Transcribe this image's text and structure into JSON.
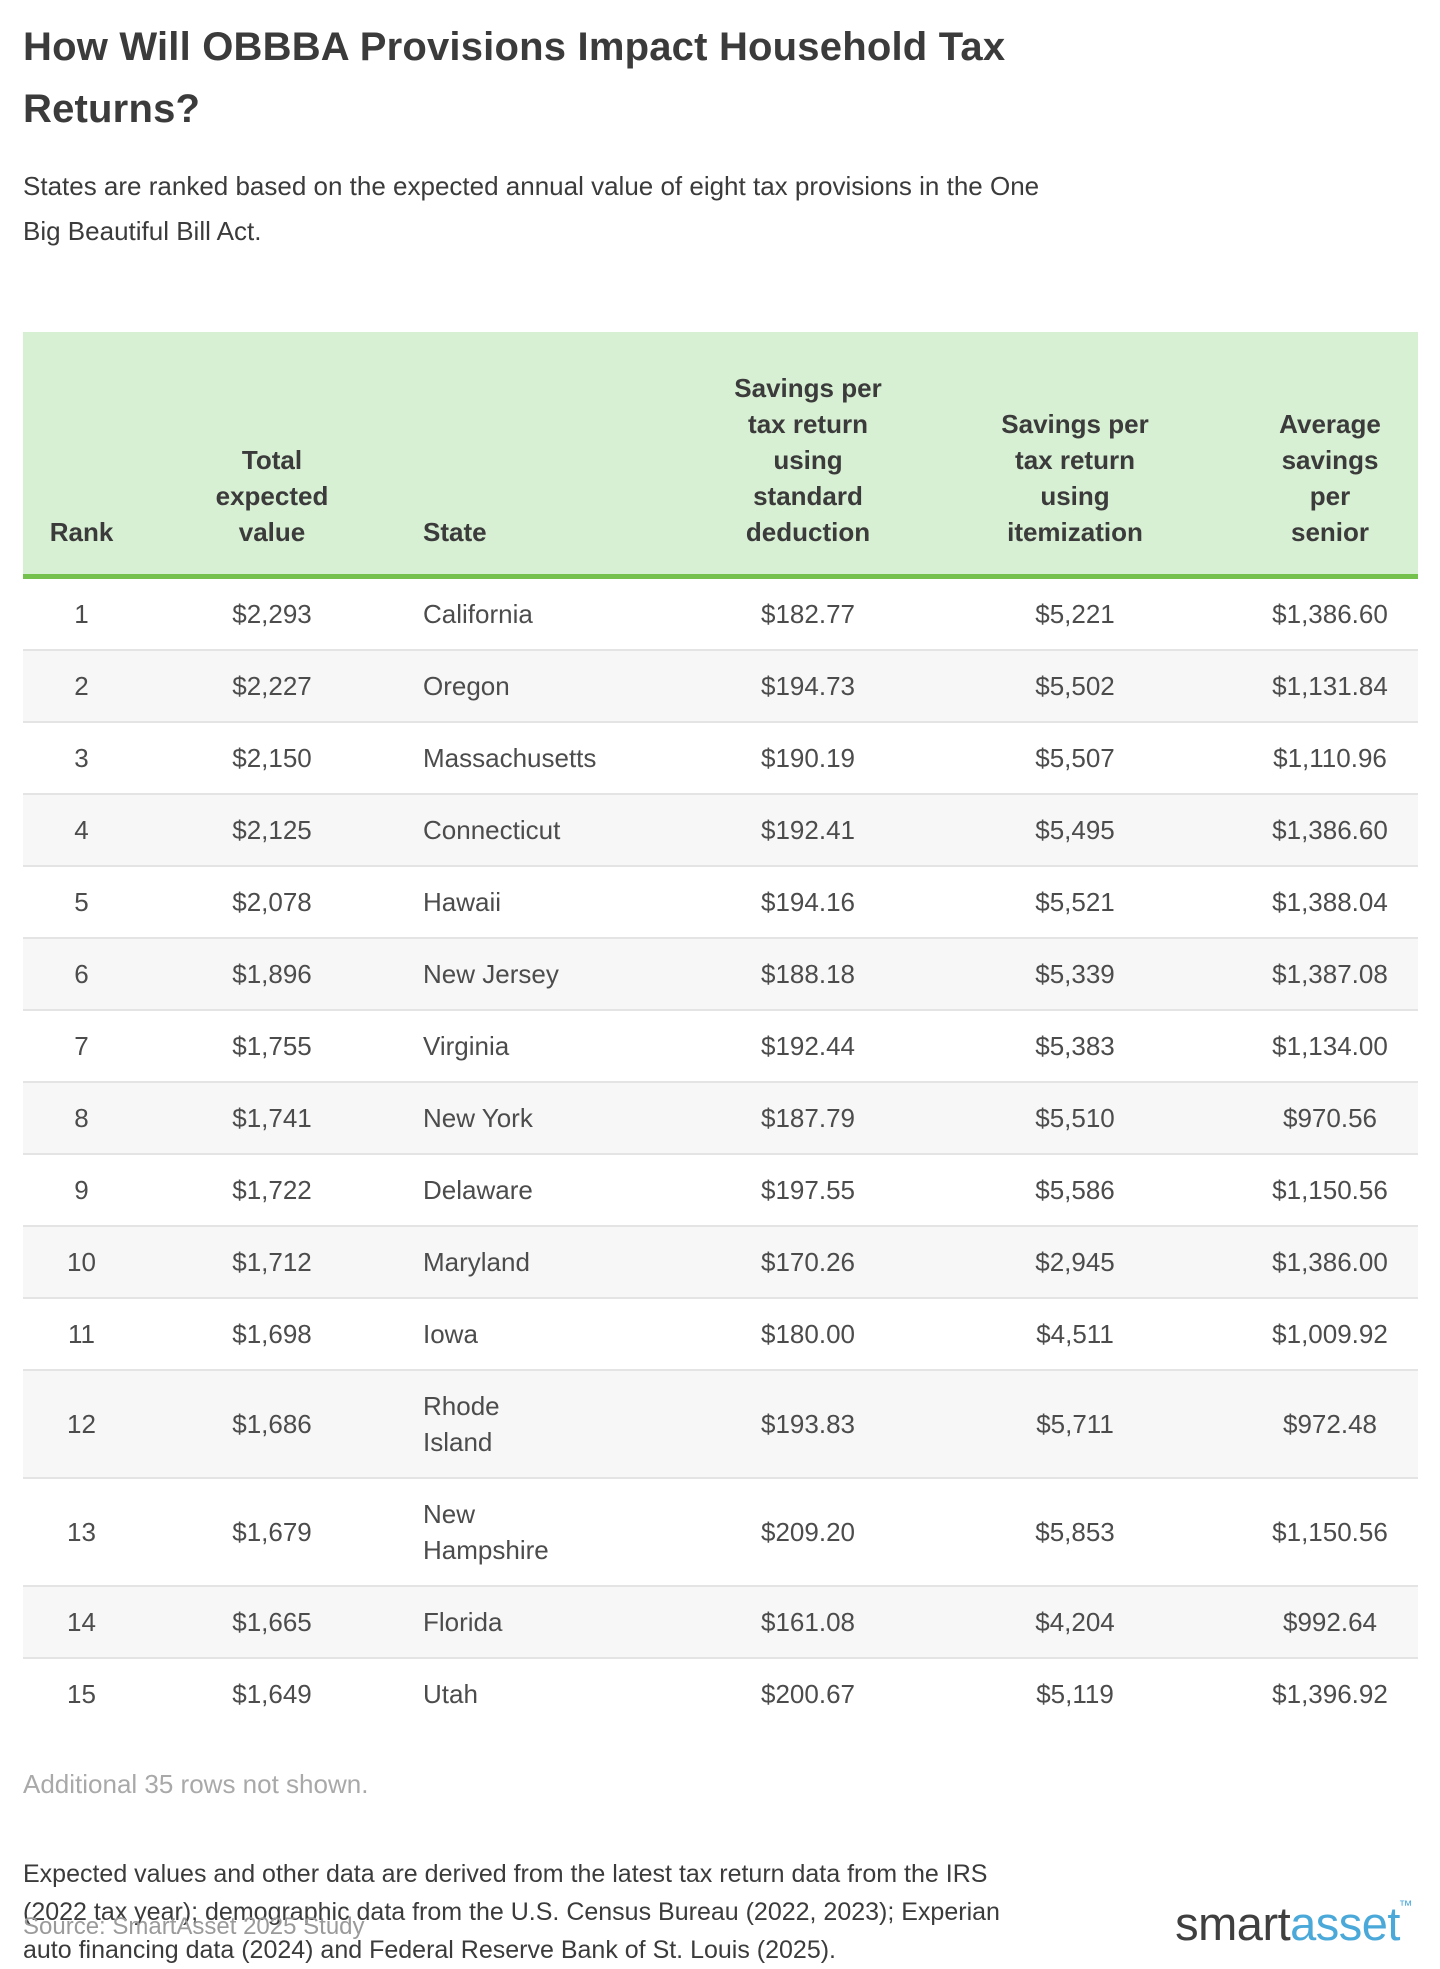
{
  "chart_data": {
    "type": "table",
    "title": "How Will OBBBA Provisions Impact Household Tax Returns?",
    "subtitle": "States are ranked based on the expected annual value of eight tax provisions in the One Big Beautiful Bill Act.",
    "columns": [
      "Rank",
      "Total expected value",
      "State",
      "Savings per tax return using standard deduction",
      "Savings per tax return using itemization",
      "Average savings per senior"
    ],
    "rows": [
      {
        "rank": "1",
        "total_expected_value": "$2,293",
        "state": "California",
        "savings_standard": "$182.77",
        "savings_itemized": "$5,221",
        "avg_senior": "$1,386.60"
      },
      {
        "rank": "2",
        "total_expected_value": "$2,227",
        "state": "Oregon",
        "savings_standard": "$194.73",
        "savings_itemized": "$5,502",
        "avg_senior": "$1,131.84"
      },
      {
        "rank": "3",
        "total_expected_value": "$2,150",
        "state": "Massachusetts",
        "savings_standard": "$190.19",
        "savings_itemized": "$5,507",
        "avg_senior": "$1,110.96"
      },
      {
        "rank": "4",
        "total_expected_value": "$2,125",
        "state": "Connecticut",
        "savings_standard": "$192.41",
        "savings_itemized": "$5,495",
        "avg_senior": "$1,386.60"
      },
      {
        "rank": "5",
        "total_expected_value": "$2,078",
        "state": "Hawaii",
        "savings_standard": "$194.16",
        "savings_itemized": "$5,521",
        "avg_senior": "$1,388.04"
      },
      {
        "rank": "6",
        "total_expected_value": "$1,896",
        "state": "New Jersey",
        "savings_standard": "$188.18",
        "savings_itemized": "$5,339",
        "avg_senior": "$1,387.08"
      },
      {
        "rank": "7",
        "total_expected_value": "$1,755",
        "state": "Virginia",
        "savings_standard": "$192.44",
        "savings_itemized": "$5,383",
        "avg_senior": "$1,134.00"
      },
      {
        "rank": "8",
        "total_expected_value": "$1,741",
        "state": "New York",
        "savings_standard": "$187.79",
        "savings_itemized": "$5,510",
        "avg_senior": "$970.56"
      },
      {
        "rank": "9",
        "total_expected_value": "$1,722",
        "state": "Delaware",
        "savings_standard": "$197.55",
        "savings_itemized": "$5,586",
        "avg_senior": "$1,150.56"
      },
      {
        "rank": "10",
        "total_expected_value": "$1,712",
        "state": "Maryland",
        "savings_standard": "$170.26",
        "savings_itemized": "$2,945",
        "avg_senior": "$1,386.00"
      },
      {
        "rank": "11",
        "total_expected_value": "$1,698",
        "state": "Iowa",
        "savings_standard": "$180.00",
        "savings_itemized": "$4,511",
        "avg_senior": "$1,009.92"
      },
      {
        "rank": "12",
        "total_expected_value": "$1,686",
        "state": "Rhode Island",
        "savings_standard": "$193.83",
        "savings_itemized": "$5,711",
        "avg_senior": "$972.48"
      },
      {
        "rank": "13",
        "total_expected_value": "$1,679",
        "state": "New Hampshire",
        "savings_standard": "$209.20",
        "savings_itemized": "$5,853",
        "avg_senior": "$1,150.56"
      },
      {
        "rank": "14",
        "total_expected_value": "$1,665",
        "state": "Florida",
        "savings_standard": "$161.08",
        "savings_itemized": "$4,204",
        "avg_senior": "$992.64"
      },
      {
        "rank": "15",
        "total_expected_value": "$1,649",
        "state": "Utah",
        "savings_standard": "$200.67",
        "savings_itemized": "$5,119",
        "avg_senior": "$1,396.92"
      }
    ],
    "note": "Additional 35 rows not shown.",
    "layout": {
      "header_align": "bottom",
      "state_column_align": "left",
      "numeric_columns_align": "center",
      "alternating_rows": true
    }
  },
  "footer": {
    "methodology_lines": [
      "Expected values and other data are derived from the latest tax return data from the IRS",
      "(2022 tax year); demographic data from the U.S. Census Bureau (2022, 2023); Experian",
      "auto financing data (2024) and Federal Reserve Bank of St. Louis (2025)."
    ],
    "source": "Source: SmartAsset 2025 Study",
    "logo_smart": "smart",
    "logo_asset": "asset",
    "logo_tm": "™"
  },
  "colors": {
    "header_background": "#d7efd2",
    "header_border_green": "#74c14e",
    "alt_row_background": "#f7f7f7",
    "row_divider": "#e4e4e4",
    "body_text": "#4c4c4c",
    "heading_text": "#3b3b3b",
    "muted_text": "#a9a9a9",
    "source_text": "#9a9a9a",
    "logo_dark": "#3f3f3f",
    "logo_blue": "#4ba9da"
  }
}
